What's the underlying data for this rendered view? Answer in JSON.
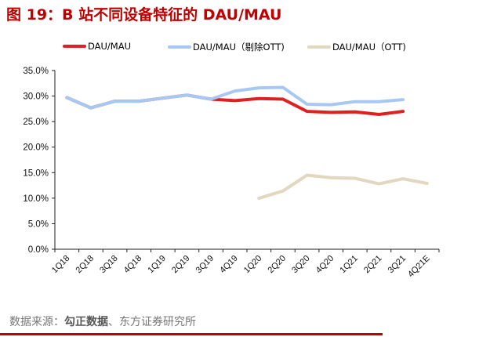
{
  "header": {
    "title": "图 19：B 站不同设备特征的 DAU/MAU"
  },
  "legend": [
    {
      "label": "DAU/MAU",
      "color": "#e02020"
    },
    {
      "label": "DAU/MAU（剔除OTT)",
      "color": "#a8c8f4"
    },
    {
      "label": "DAU/MAU（OTT)",
      "color": "#e2d7bf"
    }
  ],
  "footer": {
    "source_prefix": "数据来源：",
    "source_main": "勾正数据",
    "source_suffix": "、东方证券研究所"
  },
  "chart_data": {
    "type": "line",
    "title": "图 19：B 站不同设备特征的 DAU/MAU",
    "xlabel": "",
    "ylabel": "",
    "ylim": [
      0,
      35
    ],
    "yticks": [
      "0.0%",
      "5.0%",
      "10.0%",
      "15.0%",
      "20.0%",
      "25.0%",
      "30.0%",
      "35.0%"
    ],
    "grid": false,
    "legend_position": "top",
    "categories": [
      "1Q18",
      "2Q18",
      "3Q18",
      "4Q18",
      "1Q19",
      "2Q19",
      "3Q19",
      "4Q19",
      "1Q20",
      "2Q20",
      "3Q20",
      "4Q20",
      "1Q21",
      "2Q21",
      "3Q21",
      "4Q21E"
    ],
    "series": [
      {
        "name": "DAU/MAU",
        "color": "#e02020",
        "values": [
          29.7,
          27.7,
          29.0,
          29.0,
          29.6,
          30.2,
          29.4,
          29.1,
          29.5,
          29.4,
          27.0,
          26.8,
          26.9,
          26.4,
          27.0,
          null
        ]
      },
      {
        "name": "DAU/MAU（剔除OTT)",
        "color": "#a8c8f4",
        "values": [
          29.7,
          27.7,
          29.0,
          29.0,
          29.6,
          30.2,
          29.4,
          31.0,
          31.6,
          31.7,
          28.4,
          28.3,
          28.9,
          28.9,
          29.3,
          null
        ]
      },
      {
        "name": "DAU/MAU（OTT)",
        "color": "#e2d7bf",
        "values": [
          null,
          null,
          null,
          null,
          null,
          null,
          null,
          null,
          10.0,
          11.4,
          14.5,
          14.0,
          13.9,
          12.8,
          13.8,
          12.9
        ]
      }
    ]
  }
}
